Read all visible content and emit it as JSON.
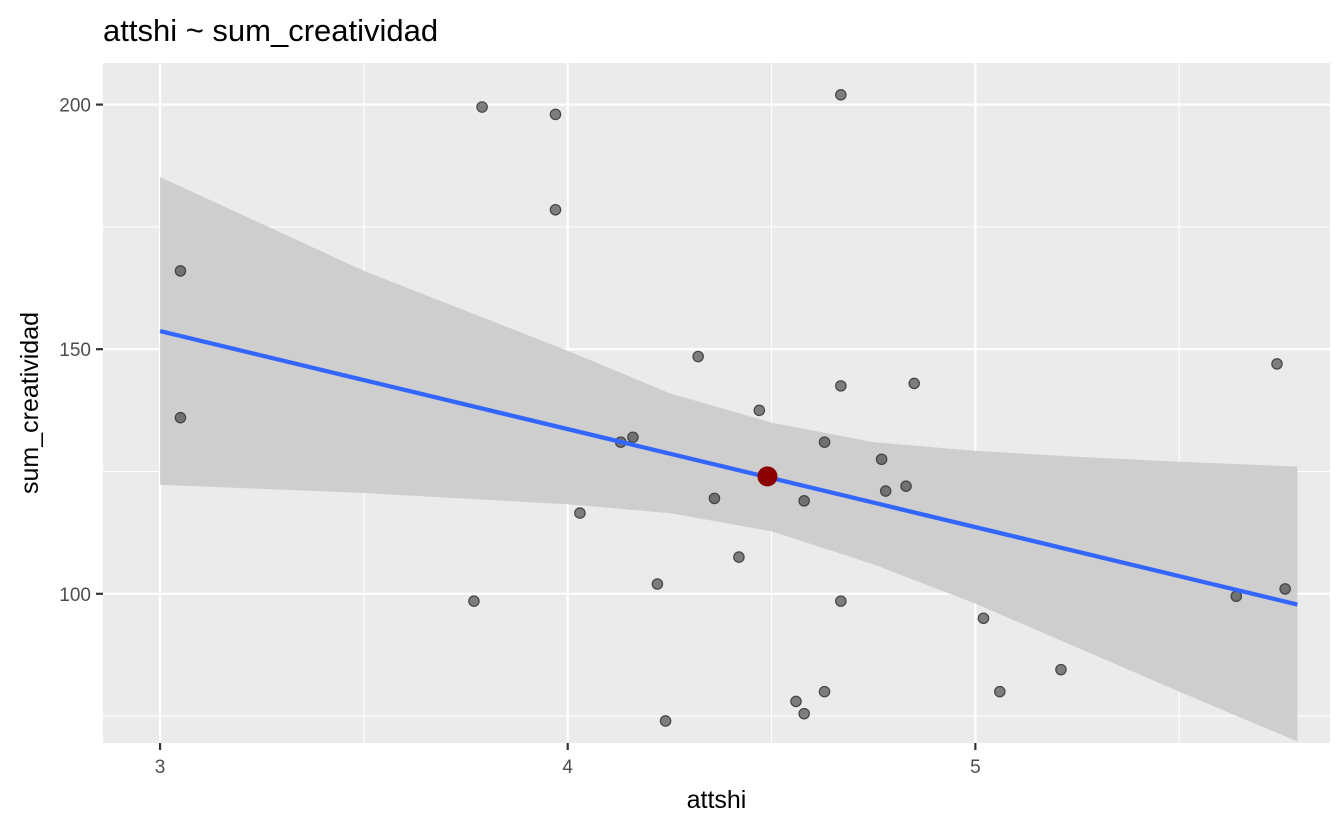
{
  "chart_data": {
    "type": "scatter",
    "title": "attshi ~ sum_creatividad",
    "xlabel": "attshi",
    "ylabel": "sum_creatividad",
    "xlim": [
      2.86,
      5.87
    ],
    "ylim": [
      69.5,
      208.5
    ],
    "x_ticks": [
      3,
      4,
      5
    ],
    "x_tick_labels": [
      "3",
      "4",
      "5"
    ],
    "y_ticks": [
      100,
      150,
      200
    ],
    "y_tick_labels": [
      "100",
      "150",
      "200"
    ],
    "grid": true,
    "points": [
      {
        "x": 3.05,
        "y": 166
      },
      {
        "x": 3.05,
        "y": 136
      },
      {
        "x": 3.79,
        "y": 199.5
      },
      {
        "x": 3.97,
        "y": 198
      },
      {
        "x": 3.97,
        "y": 178.5
      },
      {
        "x": 3.77,
        "y": 98.5
      },
      {
        "x": 4.03,
        "y": 116.5
      },
      {
        "x": 4.13,
        "y": 131
      },
      {
        "x": 4.16,
        "y": 132
      },
      {
        "x": 4.22,
        "y": 102
      },
      {
        "x": 4.24,
        "y": 74
      },
      {
        "x": 4.32,
        "y": 148.5
      },
      {
        "x": 4.36,
        "y": 119.5
      },
      {
        "x": 4.42,
        "y": 107.5
      },
      {
        "x": 4.47,
        "y": 137.5
      },
      {
        "x": 4.56,
        "y": 78
      },
      {
        "x": 4.58,
        "y": 75.5
      },
      {
        "x": 4.58,
        "y": 119
      },
      {
        "x": 4.63,
        "y": 80
      },
      {
        "x": 4.63,
        "y": 131
      },
      {
        "x": 4.67,
        "y": 202
      },
      {
        "x": 4.67,
        "y": 142.5
      },
      {
        "x": 4.67,
        "y": 98.5
      },
      {
        "x": 4.77,
        "y": 127.5
      },
      {
        "x": 4.78,
        "y": 121
      },
      {
        "x": 4.83,
        "y": 122
      },
      {
        "x": 4.85,
        "y": 143
      },
      {
        "x": 5.02,
        "y": 95
      },
      {
        "x": 5.06,
        "y": 80
      },
      {
        "x": 5.21,
        "y": 84.5
      },
      {
        "x": 5.64,
        "y": 99.5
      },
      {
        "x": 5.74,
        "y": 147
      },
      {
        "x": 5.76,
        "y": 101
      }
    ],
    "regression_line": {
      "x": [
        3,
        5.79
      ],
      "y": [
        153.7,
        97.8
      ],
      "color": "#3366ff"
    },
    "confidence_band": {
      "x": [
        3,
        3.5,
        4,
        4.25,
        4.5,
        4.75,
        5,
        5.25,
        5.5,
        5.79
      ],
      "upper": [
        185.2,
        166.0,
        149.7,
        141.0,
        135.0,
        131.0,
        129.2,
        128.0,
        127.0,
        126.0
      ],
      "lower": [
        122.3,
        120.6,
        118.3,
        116.5,
        112.8,
        106.0,
        98.0,
        89.0,
        80.0,
        69.8
      ],
      "color": "#cccccc"
    },
    "highlight_point": {
      "x": 4.49,
      "y": 124,
      "color": "#8b0000"
    },
    "colors": {
      "panel": "#ebebeb",
      "grid": "#ffffff",
      "points": "#333333"
    }
  }
}
